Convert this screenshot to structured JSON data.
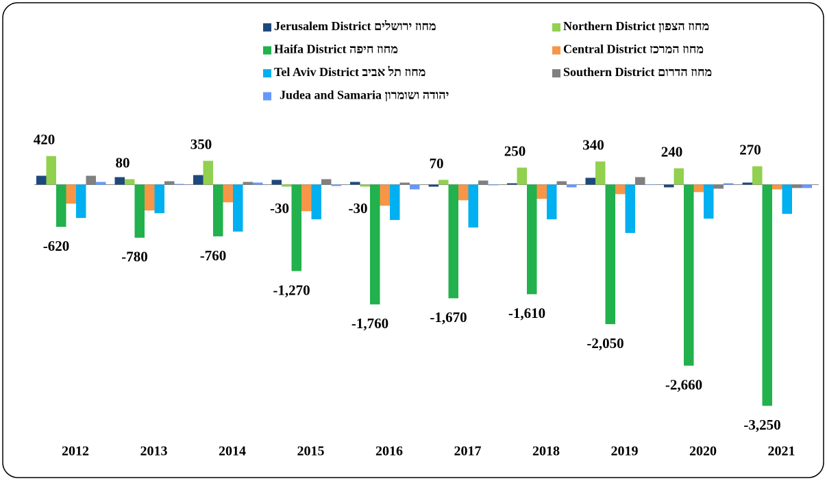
{
  "chart_data": {
    "type": "bar",
    "categories": [
      "2012",
      "2013",
      "2014",
      "2015",
      "2016",
      "2017",
      "2018",
      "2019",
      "2020",
      "2021"
    ],
    "ylim": [
      -3700,
      850
    ],
    "series": [
      {
        "name": "Jerusalem District  מחוז ירושלים",
        "color": "#1f497d",
        "values": [
          130,
          110,
          140,
          70,
          40,
          -30,
          20,
          100,
          -40,
          30
        ]
      },
      {
        "name": "Northern District מחוז הצפון",
        "color": "#92d050",
        "values": [
          420,
          80,
          350,
          -30,
          -30,
          70,
          250,
          340,
          240,
          270
        ],
        "data_labels": true
      },
      {
        "name": "Haifa District מחוז חיפה",
        "color": "#22b14c",
        "values": [
          -620,
          -780,
          -760,
          -1270,
          -1760,
          -1670,
          -1610,
          -2050,
          -2660,
          -3250
        ],
        "value_labels": [
          "-620",
          "-780",
          "-760",
          "-1,270",
          "-1,760",
          "-1,670",
          "-1,610",
          "-2,050",
          "-2,660",
          "-3,250"
        ]
      },
      {
        "name": "Central District מחוז המרכז",
        "color": "#f79646",
        "values": [
          -280,
          -380,
          -260,
          -390,
          -310,
          -230,
          -210,
          -140,
          -110,
          -70
        ]
      },
      {
        "name": "Tel Aviv District מחוז תל אביב",
        "color": "#00b0f0",
        "values": [
          -490,
          -420,
          -690,
          -510,
          -520,
          -630,
          -510,
          -710,
          -500,
          -430
        ]
      },
      {
        "name": "Southern District מחוז הדרום",
        "color": "#808080",
        "values": [
          130,
          50,
          40,
          80,
          30,
          60,
          50,
          110,
          -60,
          -50
        ]
      },
      {
        "name": "Judea and Samaria יהודה ושומרון",
        "color": "#6699ff",
        "values": [
          40,
          10,
          30,
          -20,
          -70,
          -10,
          -40,
          0,
          20,
          -50
        ]
      }
    ]
  }
}
